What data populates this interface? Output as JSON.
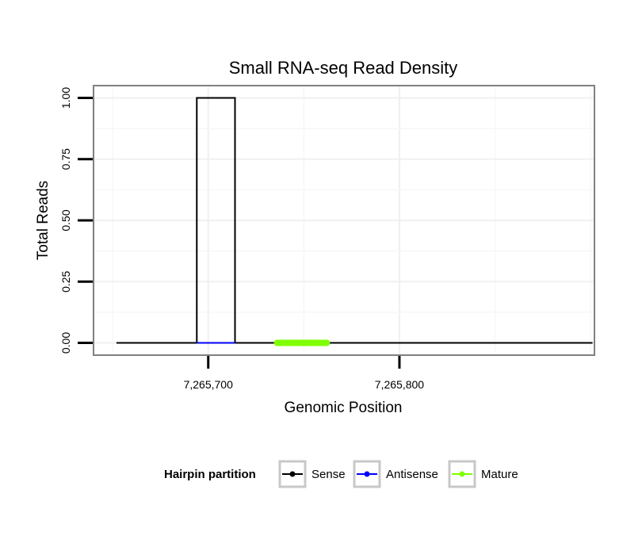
{
  "chart_data": {
    "type": "line",
    "title": "Small RNA-seq Read Density",
    "xlabel": "Genomic Position",
    "ylabel": "Total Reads",
    "xlim": [
      7265640,
      7265902
    ],
    "ylim": [
      -0.05,
      1.05
    ],
    "x_ticks": [
      7265700,
      7265800
    ],
    "x_tick_labels": [
      "7,265,700",
      "7,265,800"
    ],
    "y_ticks": [
      0,
      0.25,
      0.5,
      0.75,
      1.0
    ],
    "y_tick_labels": [
      "0.00",
      "0.25",
      "0.50",
      "0.75",
      "1.00"
    ],
    "grid": true,
    "legend": {
      "title": "Hairpin partition",
      "position": "bottom",
      "entries": [
        {
          "label": "Sense",
          "color": "#000000"
        },
        {
          "label": "Antisense",
          "color": "#0000ff"
        },
        {
          "label": "Mature",
          "color": "#80ff00"
        }
      ]
    },
    "series": [
      {
        "name": "Sense",
        "color": "#000000",
        "x": [
          7265652,
          7265694,
          7265694,
          7265714,
          7265714,
          7265901
        ],
        "y": [
          0,
          0,
          1,
          1,
          0,
          0
        ]
      },
      {
        "name": "Antisense",
        "color": "#0000ff",
        "x": [
          7265694,
          7265714
        ],
        "y": [
          0,
          0
        ]
      },
      {
        "name": "Mature",
        "color": "#80ff00",
        "x": [
          7265736,
          7265762
        ],
        "y": [
          0,
          0
        ]
      }
    ]
  }
}
